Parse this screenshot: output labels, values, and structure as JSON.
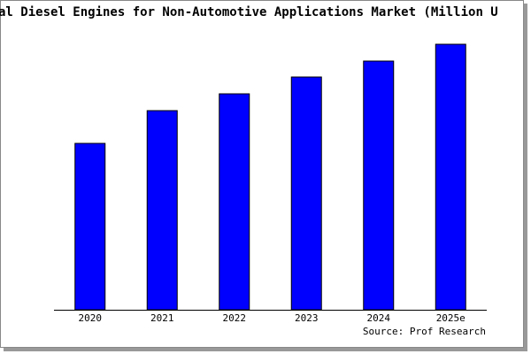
{
  "chart_data": {
    "type": "bar",
    "title": "al Diesel Engines for Non-Automotive Applications Market (Million U",
    "categories": [
      "2020",
      "2021",
      "2022",
      "2023",
      "2024",
      "2025e"
    ],
    "values": [
      188,
      225,
      244,
      263,
      281,
      300
    ],
    "color": "#0000ff",
    "source": "Source: Prof Research"
  }
}
